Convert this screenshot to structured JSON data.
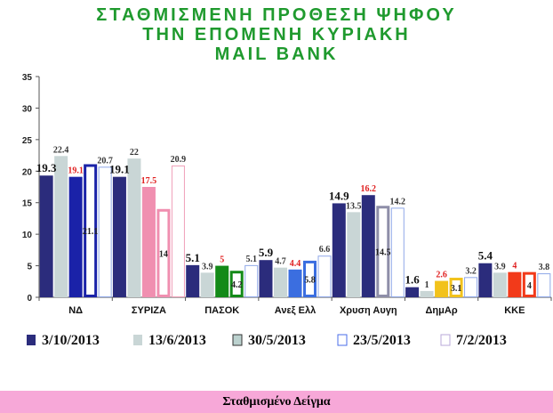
{
  "title_lines": [
    "ΣΤΑΘΜΙΣΜΕΝΗ ΠΡΟΘΕΣΗ ΨΗΦΟΥ",
    "ΤΗΝ ΕΠΟΜΕΝΗ ΚΥΡΙΑΚΗ",
    "MAIL BANK"
  ],
  "footer": "Σταθμισμένο Δείγμα",
  "chart_data": {
    "type": "bar",
    "title": "ΣΤΑΘΜΙΣΜΕΝΗ ΠΡΟΘΕΣΗ ΨΗΦΟΥ ΤΗΝ ΕΠΟΜΕΝΗ ΚΥΡΙΑΚΗ MAIL BANK",
    "categories": [
      "ΝΔ",
      "ΣΥΡΙΖΑ",
      "ΠΑΣΟΚ",
      "Ανεξ Ελλ",
      "Χρυση Αυγη",
      "ΔημΑρ",
      "ΚΚΕ"
    ],
    "ylim": [
      0,
      35
    ],
    "yticks": [
      0,
      5,
      10,
      15,
      20,
      25,
      30,
      35
    ],
    "grid": false,
    "legend_position": "bottom",
    "series": [
      {
        "name": "3/10/2013",
        "values": [
          19.3,
          19.1,
          5.1,
          5.9,
          14.9,
          1.6,
          5.4
        ]
      },
      {
        "name": "13/6/2013",
        "values": [
          22.4,
          22,
          3.9,
          4.7,
          13.5,
          1,
          3.9
        ]
      },
      {
        "name": "30/5/2013",
        "values": [
          19.1,
          17.5,
          5,
          4.4,
          16.2,
          2.6,
          4
        ]
      },
      {
        "name": "23/5/2013",
        "values": [
          21.1,
          14,
          4.2,
          5.8,
          14.5,
          3.1,
          4
        ]
      },
      {
        "name": "7/2/2013",
        "values": [
          20.7,
          20.9,
          5.1,
          6.6,
          14.2,
          3.2,
          3.8
        ]
      }
    ],
    "data_labels": [
      [
        "19.3",
        "19.1",
        "5.1",
        "5.9",
        "14.9",
        "1.6",
        "5.4"
      ],
      [
        "22.4",
        "22",
        "3.9",
        "4.7",
        "13.5",
        "1",
        "3.9"
      ],
      [
        "19.1",
        "17.5",
        "5",
        "4.4",
        "16.2",
        "2.6",
        "4"
      ],
      [
        "21.1",
        "14",
        "4.2",
        "5.8",
        "14.5",
        "3.1",
        "4"
      ],
      [
        "20.7",
        "20.9",
        "5.1",
        "6.6",
        "14.2",
        "3.2",
        "3.8"
      ]
    ],
    "colors": {
      "series0": "#2b2c7c",
      "series1": "#c9d6d6",
      "series2_by_category": [
        "#1a22a8",
        "#f08fb0",
        "#138a18",
        "#3b6ee0",
        "#2b2c7c",
        "#f2c21b",
        "#f23a1a"
      ],
      "series2_labels": "#e02020",
      "legend_series2": "#bcd2cf"
    }
  }
}
